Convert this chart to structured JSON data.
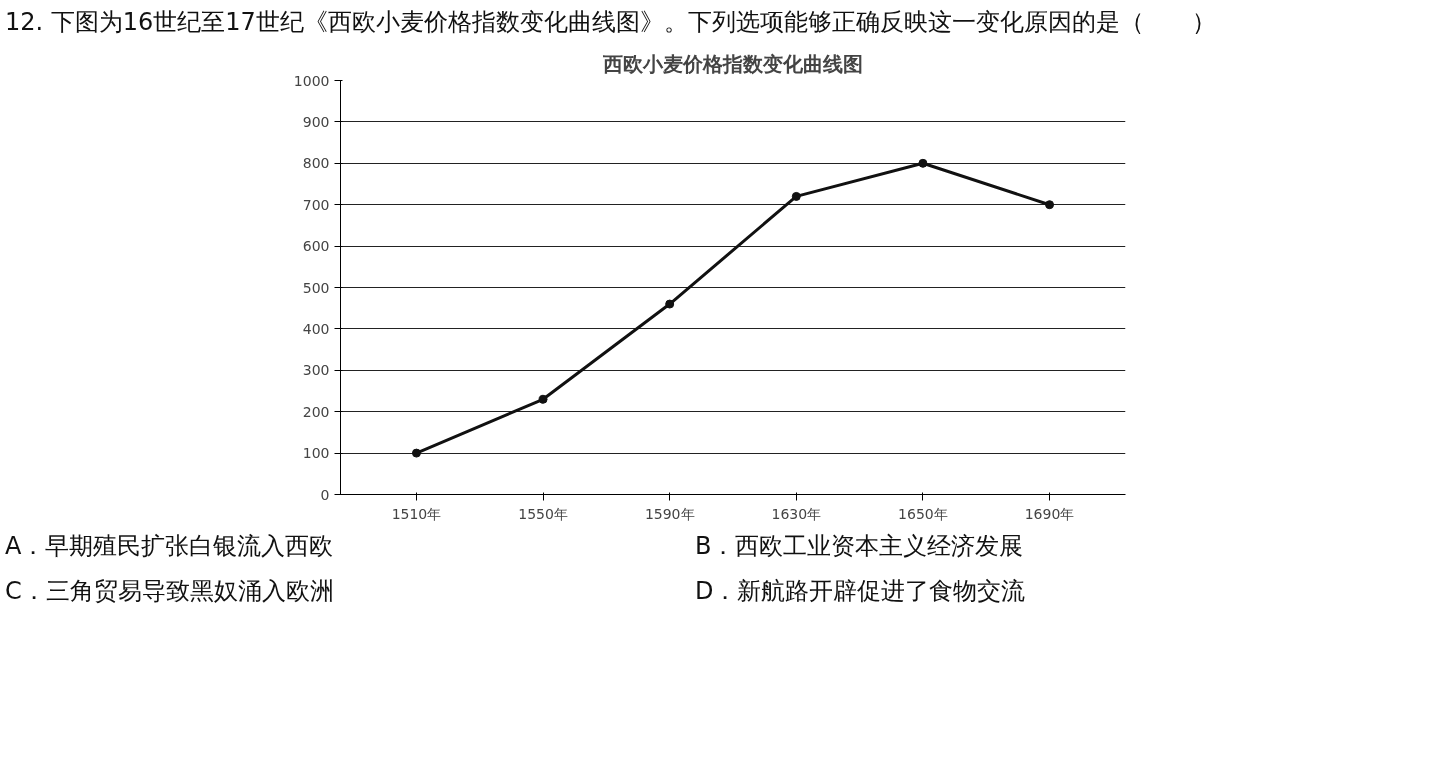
{
  "chart_data": {
    "type": "line",
    "title": "西欧小麦价格指数变化曲线图",
    "categories": [
      "1510年",
      "1550年",
      "1590年",
      "1630年",
      "1650年",
      "1690年"
    ],
    "series": [
      {
        "color": "#111111",
        "values": [
          100,
          230,
          460,
          720,
          800,
          700
        ]
      }
    ],
    "ylim": [
      0,
      1000
    ],
    "yticks": [
      0,
      100,
      200,
      300,
      400,
      500,
      600,
      700,
      800,
      900,
      1000
    ],
    "grid": "y",
    "marker": "circle",
    "line_style": "solid",
    "annotations": [
      "12. 下图为16世纪至17世纪《西欧小麦价格指数变化曲线图》。下列选项能够正确反映这一变化原因的是（　　）",
      "A．早期殖民扩张白银流入西欧",
      "B．西欧工业资本主义经济发展",
      "C．三角贸易导致黑奴涌入欧洲",
      "D．新航路开辟促进了食物交流"
    ]
  }
}
